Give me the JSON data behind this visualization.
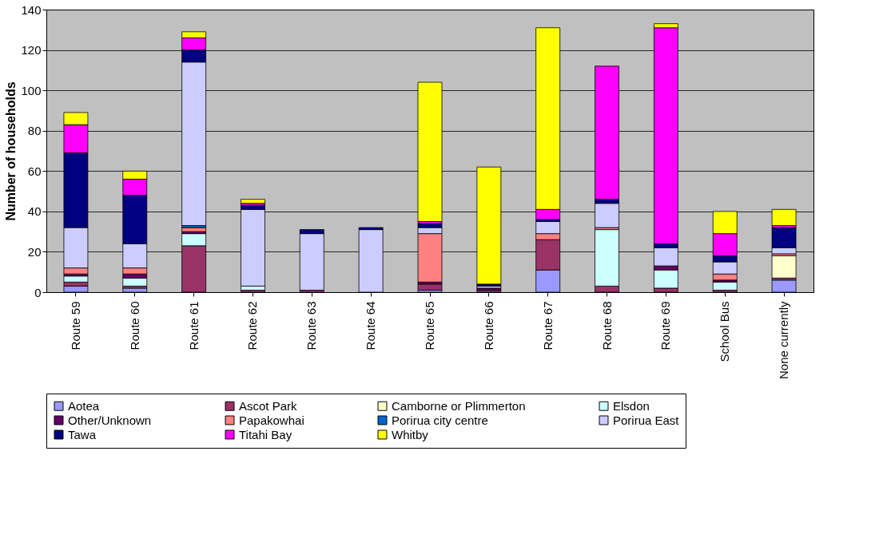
{
  "chart_data": {
    "type": "bar",
    "stacked": true,
    "ylabel": "Number of households",
    "categories": [
      "Route 59",
      "Route 60",
      "Route 61",
      "Route 62",
      "Route 63",
      "Route 64",
      "Route 65",
      "Route 66",
      "Route 67",
      "Route 68",
      "Route 69",
      "School Bus",
      "None currently"
    ],
    "series": [
      {
        "name": "Aotea",
        "color": "#9999ff",
        "values": [
          3,
          2,
          null,
          null,
          null,
          null,
          1,
          null,
          11,
          null,
          null,
          null,
          6
        ]
      },
      {
        "name": "Ascot Park",
        "color": "#993366",
        "values": [
          2,
          1,
          23,
          1,
          1,
          null,
          3,
          1,
          15,
          3,
          2,
          1,
          1
        ]
      },
      {
        "name": "Camborne or Plimmerton",
        "color": "#ffffcc",
        "values": [
          null,
          null,
          null,
          null,
          null,
          null,
          null,
          null,
          null,
          null,
          null,
          null,
          11
        ]
      },
      {
        "name": "Elsdon",
        "color": "#ccffff",
        "values": [
          3,
          4,
          6,
          2,
          null,
          null,
          null,
          null,
          null,
          28,
          9,
          4,
          null
        ]
      },
      {
        "name": "Other/Unknown",
        "color": "#660066",
        "values": [
          1,
          2,
          1,
          null,
          null,
          null,
          1,
          1,
          null,
          null,
          2,
          1,
          null
        ]
      },
      {
        "name": "Papakowhai",
        "color": "#ff8080",
        "values": [
          3,
          3,
          2,
          null,
          null,
          null,
          24,
          null,
          3,
          1,
          null,
          3,
          1
        ]
      },
      {
        "name": "Porirua city centre",
        "color": "#0066cc",
        "values": [
          null,
          null,
          1,
          null,
          null,
          null,
          null,
          null,
          null,
          null,
          null,
          null,
          null
        ]
      },
      {
        "name": "Porirua East",
        "color": "#ccccff",
        "values": [
          20,
          12,
          81,
          38,
          28,
          31,
          3,
          1,
          6,
          12,
          9,
          6,
          3
        ]
      },
      {
        "name": "Tawa",
        "color": "#000080",
        "values": [
          37,
          24,
          6,
          2,
          2,
          1,
          2,
          1,
          1,
          2,
          2,
          3,
          10
        ]
      },
      {
        "name": "Titahi Bay",
        "color": "#ff00ff",
        "values": [
          14,
          8,
          6,
          1,
          null,
          null,
          1,
          null,
          5,
          66,
          107,
          11,
          1
        ]
      },
      {
        "name": "Whitby",
        "color": "#ffff00",
        "values": [
          6,
          4,
          3,
          2,
          null,
          null,
          69,
          58,
          90,
          null,
          2,
          11,
          8
        ]
      }
    ],
    "ylim": [
      0,
      140
    ],
    "yticks": [
      0,
      20,
      40,
      60,
      80,
      100,
      120,
      140
    ],
    "grid": "y",
    "legend": "bottom"
  }
}
